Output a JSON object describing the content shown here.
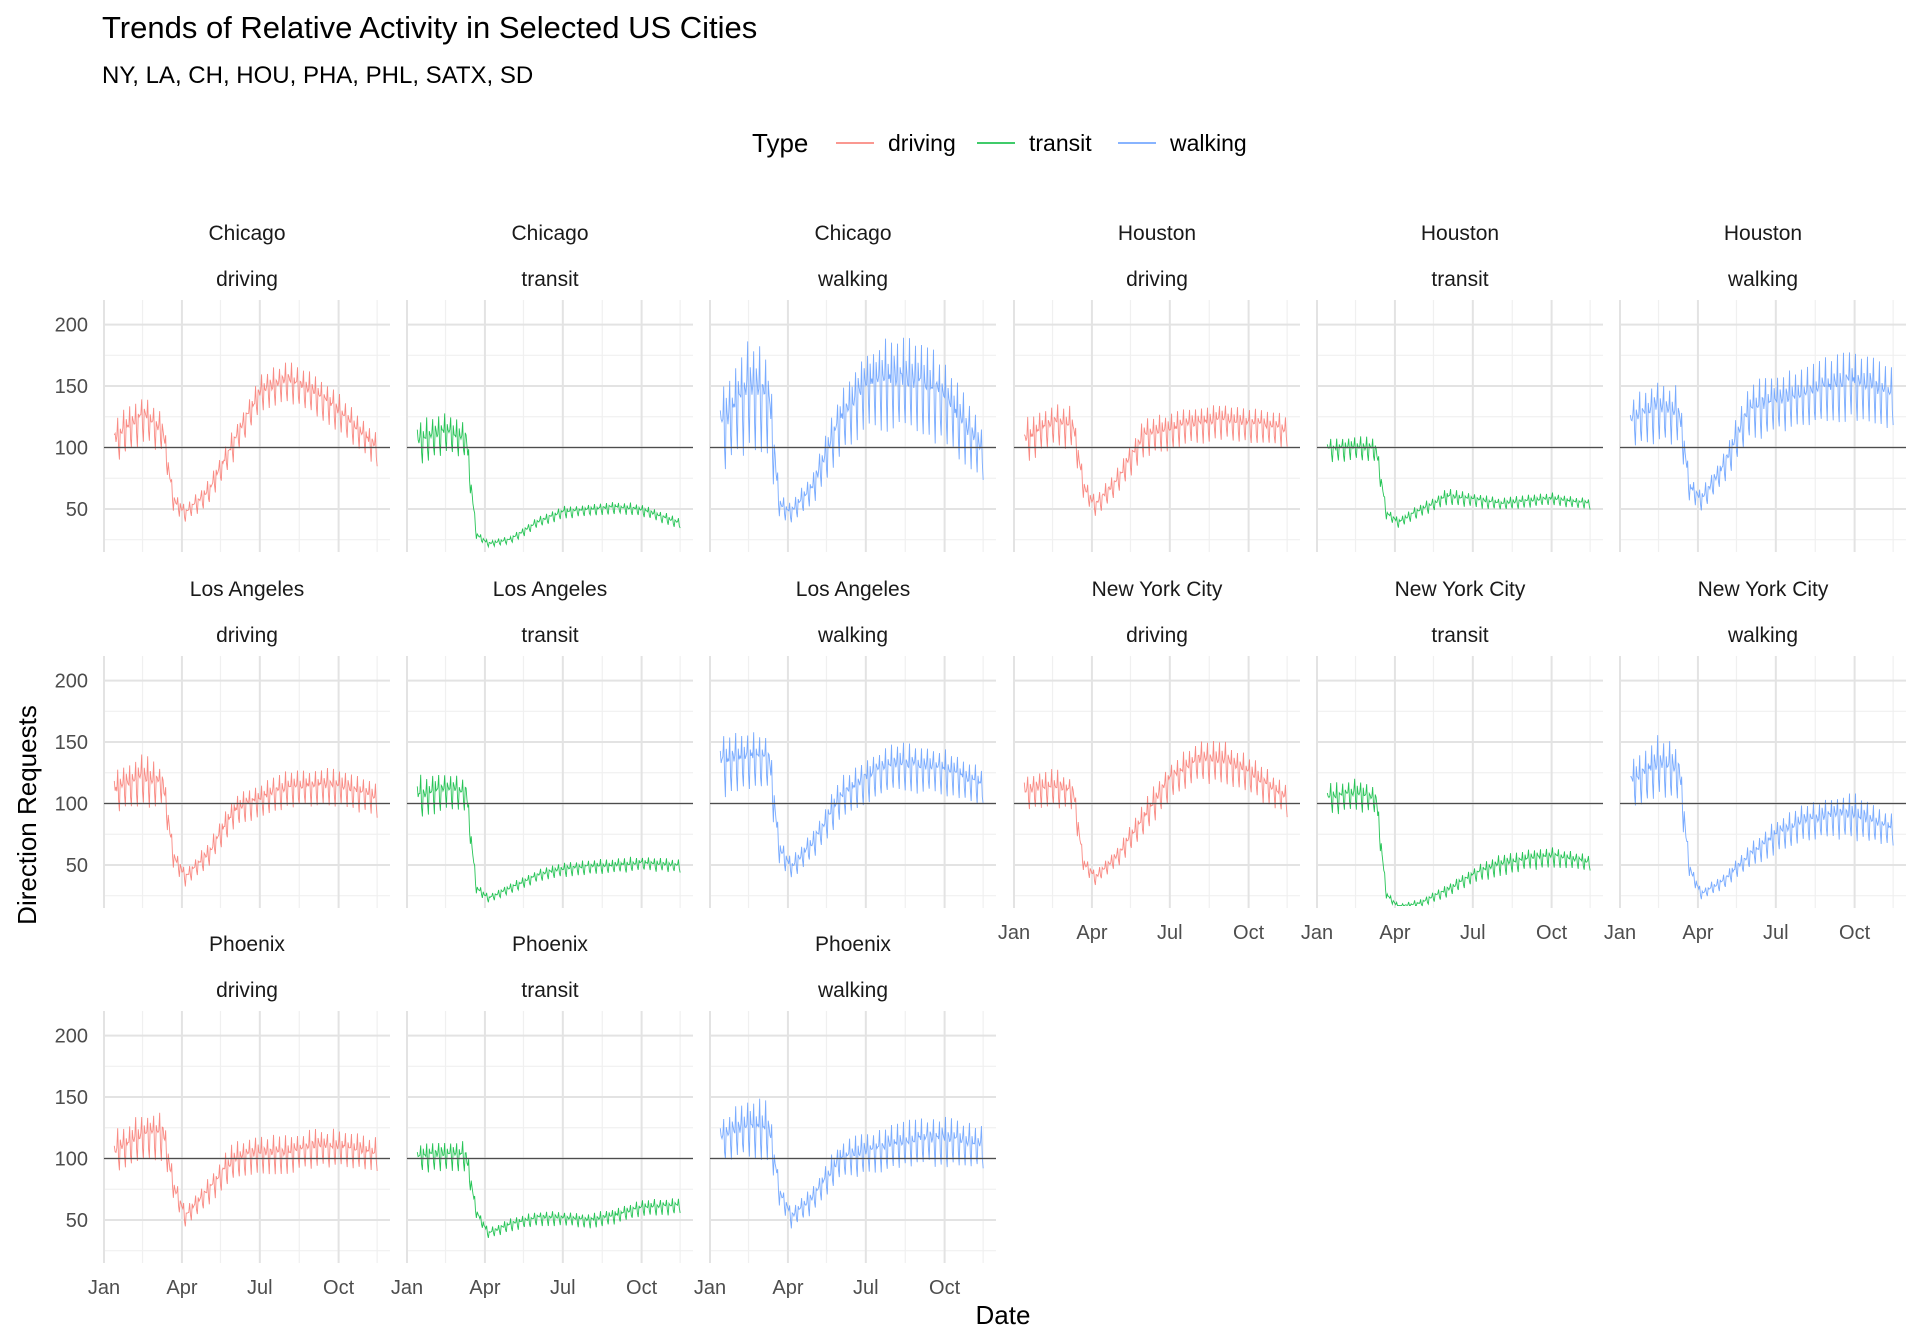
{
  "chart_data": {
    "type": "line",
    "title": "Trends of Relative Activity in Selected US Cities",
    "subtitle": "NY, LA, CH, HOU, PHA, PHL, SATX, SD",
    "xlabel": "Date",
    "ylabel": "Direction Requests",
    "legend": {
      "title": "Type",
      "placement": "top",
      "entries": [
        "driving",
        "transit",
        "walking"
      ]
    },
    "colors": {
      "driving": "#F8766D",
      "transit": "#00BA38",
      "walking": "#619CFF"
    },
    "reference_line": 100,
    "ylim": [
      15,
      220
    ],
    "yticks": [
      50,
      100,
      150,
      200
    ],
    "xlim": [
      "2020-01-01",
      "2020-11-30"
    ],
    "xticks": [
      {
        "date": "2020-01-01",
        "label": "Jan"
      },
      {
        "date": "2020-04-01",
        "label": "Apr"
      },
      {
        "date": "2020-07-01",
        "label": "Jul"
      },
      {
        "date": "2020-10-01",
        "label": "Oct"
      }
    ],
    "date_range": [
      "2020-01-13",
      "2020-11-15"
    ],
    "grid": true,
    "facets": [
      {
        "city": "Chicago",
        "type": "driving",
        "series": [
          [
            "2020-01-13",
            100
          ],
          [
            "2020-02-15",
            120
          ],
          [
            "2020-03-10",
            108
          ],
          [
            "2020-03-22",
            55
          ],
          [
            "2020-04-05",
            45
          ],
          [
            "2020-05-01",
            60
          ],
          [
            "2020-06-01",
            100
          ],
          [
            "2020-07-01",
            140
          ],
          [
            "2020-08-01",
            150
          ],
          [
            "2020-09-01",
            140
          ],
          [
            "2020-10-01",
            125
          ],
          [
            "2020-11-15",
            95
          ]
        ],
        "amplitude": [
          24,
          22,
          20,
          10,
          8,
          12,
          16,
          18,
          20,
          20,
          18,
          16
        ]
      },
      {
        "city": "Chicago",
        "type": "transit",
        "series": [
          [
            "2020-01-13",
            100
          ],
          [
            "2020-02-15",
            108
          ],
          [
            "2020-03-10",
            102
          ],
          [
            "2020-03-22",
            28
          ],
          [
            "2020-04-05",
            21
          ],
          [
            "2020-05-01",
            24
          ],
          [
            "2020-06-01",
            38
          ],
          [
            "2020-07-01",
            46
          ],
          [
            "2020-08-01",
            48
          ],
          [
            "2020-09-01",
            50
          ],
          [
            "2020-10-01",
            48
          ],
          [
            "2020-11-15",
            37
          ]
        ],
        "amplitude": [
          22,
          20,
          18,
          4,
          3,
          4,
          5,
          6,
          6,
          6,
          6,
          5
        ]
      },
      {
        "city": "Chicago",
        "type": "walking",
        "series": [
          [
            "2020-01-13",
            105
          ],
          [
            "2020-02-15",
            135
          ],
          [
            "2020-03-10",
            125
          ],
          [
            "2020-03-22",
            50
          ],
          [
            "2020-04-05",
            45
          ],
          [
            "2020-05-01",
            65
          ],
          [
            "2020-06-01",
            115
          ],
          [
            "2020-07-01",
            140
          ],
          [
            "2020-08-01",
            145
          ],
          [
            "2020-09-01",
            140
          ],
          [
            "2020-10-01",
            130
          ],
          [
            "2020-11-15",
            90
          ]
        ],
        "amplitude": [
          40,
          55,
          50,
          12,
          10,
          16,
          30,
          40,
          45,
          45,
          42,
          25
        ]
      },
      {
        "city": "Houston",
        "type": "driving",
        "series": [
          [
            "2020-01-13",
            100
          ],
          [
            "2020-02-15",
            115
          ],
          [
            "2020-03-10",
            112
          ],
          [
            "2020-03-22",
            65
          ],
          [
            "2020-04-05",
            50
          ],
          [
            "2020-05-01",
            70
          ],
          [
            "2020-06-01",
            105
          ],
          [
            "2020-07-01",
            110
          ],
          [
            "2020-08-01",
            115
          ],
          [
            "2020-09-01",
            118
          ],
          [
            "2020-10-01",
            115
          ],
          [
            "2020-11-15",
            110
          ]
        ],
        "amplitude": [
          22,
          20,
          20,
          12,
          10,
          14,
          18,
          18,
          18,
          18,
          18,
          16
        ]
      },
      {
        "city": "Houston",
        "type": "transit",
        "series": [
          [
            "2020-01-13",
            95
          ],
          [
            "2020-02-15",
            98
          ],
          [
            "2020-03-10",
            95
          ],
          [
            "2020-03-22",
            45
          ],
          [
            "2020-04-05",
            38
          ],
          [
            "2020-05-01",
            48
          ],
          [
            "2020-06-01",
            58
          ],
          [
            "2020-07-01",
            56
          ],
          [
            "2020-08-01",
            53
          ],
          [
            "2020-09-01",
            55
          ],
          [
            "2020-10-01",
            57
          ],
          [
            "2020-11-15",
            53
          ]
        ],
        "amplitude": [
          12,
          12,
          12,
          5,
          5,
          6,
          8,
          7,
          6,
          6,
          6,
          5
        ]
      },
      {
        "city": "Houston",
        "type": "walking",
        "series": [
          [
            "2020-01-13",
            115
          ],
          [
            "2020-02-15",
            125
          ],
          [
            "2020-03-10",
            120
          ],
          [
            "2020-03-22",
            65
          ],
          [
            "2020-04-05",
            55
          ],
          [
            "2020-05-01",
            80
          ],
          [
            "2020-06-01",
            125
          ],
          [
            "2020-07-01",
            130
          ],
          [
            "2020-08-01",
            135
          ],
          [
            "2020-09-01",
            140
          ],
          [
            "2020-10-01",
            145
          ],
          [
            "2020-11-15",
            135
          ]
        ],
        "amplitude": [
          25,
          30,
          28,
          12,
          10,
          16,
          28,
          28,
          30,
          32,
          35,
          28
        ]
      },
      {
        "city": "Los Angeles",
        "type": "driving",
        "series": [
          [
            "2020-01-13",
            105
          ],
          [
            "2020-02-15",
            115
          ],
          [
            "2020-03-10",
            110
          ],
          [
            "2020-03-22",
            55
          ],
          [
            "2020-04-05",
            38
          ],
          [
            "2020-05-01",
            55
          ],
          [
            "2020-06-01",
            90
          ],
          [
            "2020-07-01",
            100
          ],
          [
            "2020-08-01",
            108
          ],
          [
            "2020-09-01",
            110
          ],
          [
            "2020-10-01",
            110
          ],
          [
            "2020-11-15",
            100
          ]
        ],
        "amplitude": [
          22,
          25,
          20,
          10,
          8,
          12,
          16,
          16,
          18,
          18,
          18,
          16
        ]
      },
      {
        "city": "Los Angeles",
        "type": "transit",
        "series": [
          [
            "2020-01-13",
            100
          ],
          [
            "2020-02-15",
            108
          ],
          [
            "2020-03-10",
            105
          ],
          [
            "2020-03-22",
            30
          ],
          [
            "2020-04-05",
            22
          ],
          [
            "2020-05-01",
            30
          ],
          [
            "2020-06-01",
            40
          ],
          [
            "2020-07-01",
            45
          ],
          [
            "2020-08-01",
            47
          ],
          [
            "2020-09-01",
            48
          ],
          [
            "2020-10-01",
            50
          ],
          [
            "2020-11-15",
            48
          ]
        ],
        "amplitude": [
          22,
          18,
          16,
          5,
          4,
          5,
          6,
          7,
          7,
          7,
          7,
          6
        ]
      },
      {
        "city": "Los Angeles",
        "type": "walking",
        "series": [
          [
            "2020-01-13",
            125
          ],
          [
            "2020-02-15",
            130
          ],
          [
            "2020-03-10",
            128
          ],
          [
            "2020-03-22",
            60
          ],
          [
            "2020-04-05",
            45
          ],
          [
            "2020-05-01",
            65
          ],
          [
            "2020-06-01",
            100
          ],
          [
            "2020-07-01",
            115
          ],
          [
            "2020-08-01",
            125
          ],
          [
            "2020-09-01",
            125
          ],
          [
            "2020-10-01",
            122
          ],
          [
            "2020-11-15",
            110
          ]
        ],
        "amplitude": [
          30,
          30,
          28,
          12,
          10,
          14,
          20,
          22,
          24,
          24,
          22,
          18
        ]
      },
      {
        "city": "New York City",
        "type": "driving",
        "series": [
          [
            "2020-01-13",
            105
          ],
          [
            "2020-02-15",
            110
          ],
          [
            "2020-03-10",
            105
          ],
          [
            "2020-03-22",
            50
          ],
          [
            "2020-04-05",
            38
          ],
          [
            "2020-05-01",
            55
          ],
          [
            "2020-06-01",
            85
          ],
          [
            "2020-07-01",
            115
          ],
          [
            "2020-08-01",
            130
          ],
          [
            "2020-09-01",
            130
          ],
          [
            "2020-10-01",
            120
          ],
          [
            "2020-11-15",
            100
          ]
        ],
        "amplitude": [
          18,
          18,
          16,
          8,
          6,
          10,
          16,
          18,
          20,
          20,
          18,
          16
        ]
      },
      {
        "city": "New York City",
        "type": "transit",
        "series": [
          [
            "2020-01-13",
            100
          ],
          [
            "2020-02-15",
            105
          ],
          [
            "2020-03-10",
            100
          ],
          [
            "2020-03-22",
            25
          ],
          [
            "2020-04-05",
            15
          ],
          [
            "2020-05-01",
            18
          ],
          [
            "2020-06-01",
            28
          ],
          [
            "2020-07-01",
            40
          ],
          [
            "2020-08-01",
            48
          ],
          [
            "2020-09-01",
            52
          ],
          [
            "2020-10-01",
            55
          ],
          [
            "2020-11-15",
            50
          ]
        ],
        "amplitude": [
          15,
          15,
          15,
          4,
          3,
          4,
          6,
          8,
          10,
          10,
          10,
          8
        ]
      },
      {
        "city": "New York City",
        "type": "walking",
        "series": [
          [
            "2020-01-13",
            110
          ],
          [
            "2020-02-15",
            125
          ],
          [
            "2020-03-10",
            120
          ],
          [
            "2020-03-22",
            45
          ],
          [
            "2020-04-05",
            25
          ],
          [
            "2020-05-01",
            35
          ],
          [
            "2020-06-01",
            55
          ],
          [
            "2020-07-01",
            70
          ],
          [
            "2020-08-01",
            80
          ],
          [
            "2020-09-01",
            85
          ],
          [
            "2020-10-01",
            85
          ],
          [
            "2020-11-15",
            75
          ]
        ],
        "amplitude": [
          25,
          30,
          28,
          8,
          5,
          8,
          12,
          16,
          18,
          20,
          22,
          16
        ]
      },
      {
        "city": "Phoenix",
        "type": "driving",
        "series": [
          [
            "2020-01-13",
            100
          ],
          [
            "2020-02-15",
            112
          ],
          [
            "2020-03-10",
            115
          ],
          [
            "2020-03-22",
            75
          ],
          [
            "2020-04-05",
            50
          ],
          [
            "2020-05-01",
            70
          ],
          [
            "2020-06-01",
            95
          ],
          [
            "2020-07-01",
            100
          ],
          [
            "2020-08-01",
            100
          ],
          [
            "2020-09-01",
            105
          ],
          [
            "2020-10-01",
            105
          ],
          [
            "2020-11-15",
            100
          ]
        ],
        "amplitude": [
          22,
          24,
          24,
          12,
          10,
          14,
          18,
          18,
          18,
          18,
          18,
          16
        ]
      },
      {
        "city": "Phoenix",
        "type": "transit",
        "series": [
          [
            "2020-01-13",
            98
          ],
          [
            "2020-02-15",
            100
          ],
          [
            "2020-03-10",
            98
          ],
          [
            "2020-03-22",
            55
          ],
          [
            "2020-04-05",
            38
          ],
          [
            "2020-05-01",
            45
          ],
          [
            "2020-06-01",
            50
          ],
          [
            "2020-07-01",
            50
          ],
          [
            "2020-08-01",
            48
          ],
          [
            "2020-09-01",
            52
          ],
          [
            "2020-10-01",
            58
          ],
          [
            "2020-11-15",
            60
          ]
        ],
        "amplitude": [
          15,
          15,
          15,
          6,
          5,
          6,
          7,
          7,
          7,
          8,
          8,
          8
        ]
      },
      {
        "city": "Phoenix",
        "type": "walking",
        "series": [
          [
            "2020-01-13",
            110
          ],
          [
            "2020-02-15",
            120
          ],
          [
            "2020-03-10",
            118
          ],
          [
            "2020-03-22",
            70
          ],
          [
            "2020-04-05",
            50
          ],
          [
            "2020-05-01",
            65
          ],
          [
            "2020-06-01",
            95
          ],
          [
            "2020-07-01",
            100
          ],
          [
            "2020-08-01",
            105
          ],
          [
            "2020-09-01",
            110
          ],
          [
            "2020-10-01",
            110
          ],
          [
            "2020-11-15",
            105
          ]
        ],
        "amplitude": [
          22,
          28,
          28,
          12,
          10,
          14,
          18,
          20,
          22,
          22,
          24,
          20
        ]
      }
    ]
  }
}
